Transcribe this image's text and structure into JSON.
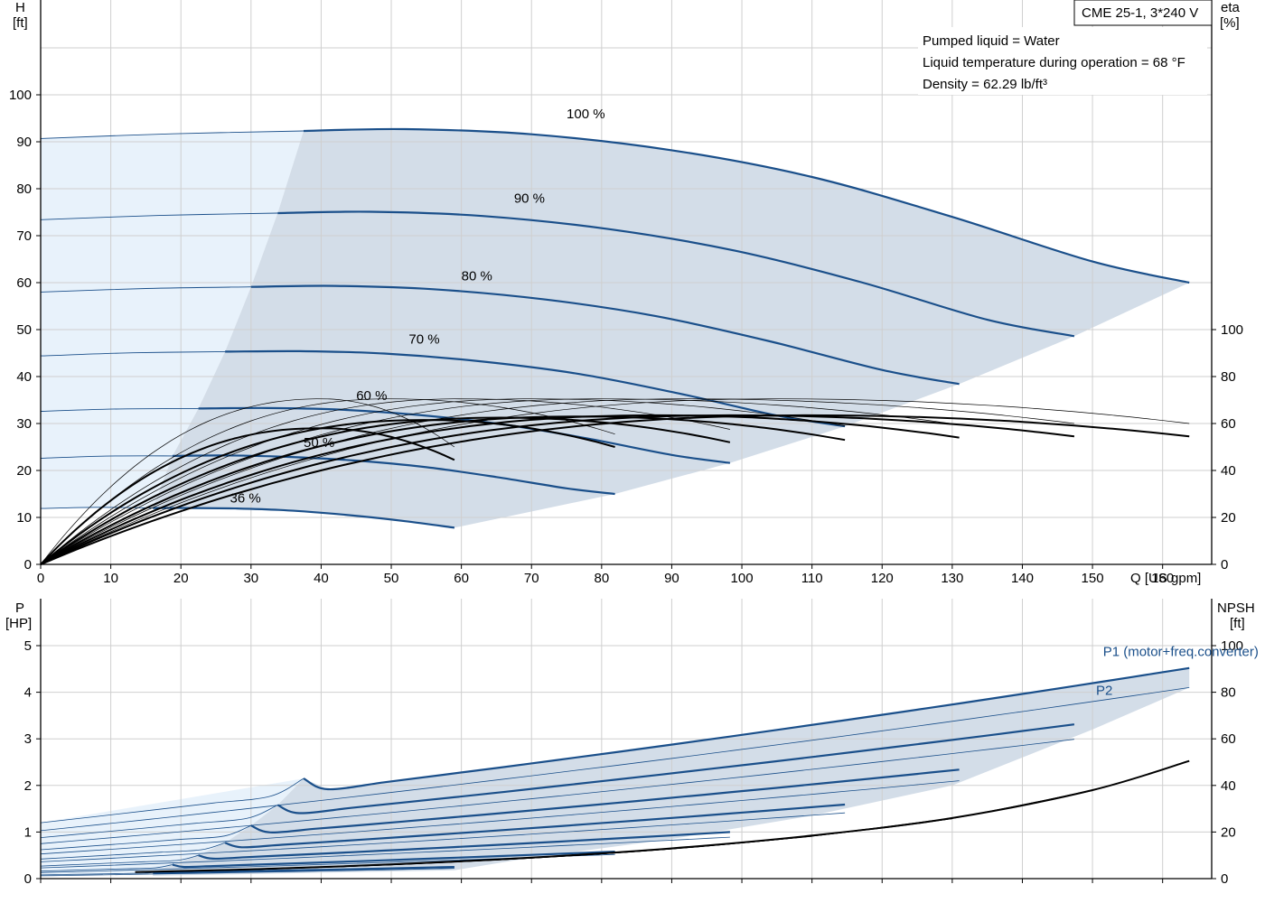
{
  "model_label": "CME 25-1, 3*240 V",
  "colors": {
    "speed_curve": "#1a4f8a",
    "fill_dark": "#d3dde8",
    "fill_light": "#e8f2fb",
    "eta_curve": "#000000",
    "grid": "#cfcfcf"
  },
  "notes": [
    "Pumped liquid = Water",
    "Liquid temperature during operation = 68 °F",
    "Density = 62.29 lb/ft³"
  ],
  "chart_data": [
    {
      "type": "line",
      "xlabel": "Q [US gpm]",
      "ylabel_left": "H",
      "ylabel_left_unit": "[ft]",
      "ylabel_right": "eta",
      "ylabel_right_unit": "[%]",
      "xlim": [
        0,
        167
      ],
      "ylim_left": [
        0,
        115
      ],
      "ylim_right_ticks": [
        0,
        20,
        40,
        60,
        80,
        100
      ],
      "x_ticks": [
        "0",
        "10",
        "20",
        "30",
        "40",
        "50",
        "60",
        "70",
        "80",
        "90",
        "100",
        "110",
        "120",
        "130",
        "140",
        "150",
        "160"
      ],
      "y_ticks_left": [
        "0",
        "10",
        "20",
        "30",
        "40",
        "50",
        "60",
        "70",
        "80",
        "90",
        "100"
      ],
      "y_ticks_right": [
        "0",
        "20",
        "40",
        "60",
        "80",
        "100"
      ],
      "head_curves": [
        {
          "label": "100 %",
          "shutoff": 90.7,
          "q_solid": 37.5,
          "q_end": 163.8,
          "h_end": 60,
          "points": [
            [
              37.5,
              92.3
            ],
            [
              52,
              92.7
            ],
            [
              70,
              91.6
            ],
            [
              90,
              88.2
            ],
            [
              110,
              82.5
            ],
            [
              130,
              74.0
            ],
            [
              150,
              64.5
            ],
            [
              163.8,
              60
            ]
          ],
          "label_at": [
            75,
            95
          ]
        },
        {
          "label": "90 %",
          "shutoff": 73.4,
          "q_solid": 33.8,
          "q_end": 147.4,
          "h_end": 48.6,
          "points": [
            [
              33.8,
              74.8
            ],
            [
              47,
              75.1
            ],
            [
              63,
              74.2
            ],
            [
              81,
              71.4
            ],
            [
              99,
              66.8
            ],
            [
              117,
              60.1
            ],
            [
              135,
              52.1
            ],
            [
              147.4,
              48.6
            ]
          ],
          "label_at": [
            67.5,
            77
          ]
        },
        {
          "label": "80 %",
          "shutoff": 58.0,
          "q_solid": 30.0,
          "q_end": 131,
          "h_end": 38.4,
          "points": [
            [
              30,
              59.1
            ],
            [
              42,
              59.3
            ],
            [
              56,
              58.6
            ],
            [
              72,
              56.4
            ],
            [
              88,
              52.8
            ],
            [
              104,
              47.5
            ],
            [
              120,
              41.4
            ],
            [
              131,
              38.4
            ]
          ],
          "label_at": [
            60,
            60.5
          ]
        },
        {
          "label": "70 %",
          "shutoff": 44.4,
          "q_solid": 26.3,
          "q_end": 114.7,
          "h_end": 29.4,
          "points": [
            [
              26.3,
              45.3
            ],
            [
              37,
              45.4
            ],
            [
              49,
              44.9
            ],
            [
              63,
              43.2
            ],
            [
              77,
              40.5
            ],
            [
              91,
              36.4
            ],
            [
              105,
              31.7
            ],
            [
              114.7,
              29.4
            ]
          ],
          "label_at": [
            52.5,
            47
          ]
        },
        {
          "label": "60 %",
          "shutoff": 32.6,
          "q_solid": 22.5,
          "q_end": 98.3,
          "h_end": 21.6,
          "points": [
            [
              22.5,
              33.2
            ],
            [
              31.5,
              33.3
            ],
            [
              42,
              33.0
            ],
            [
              54,
              31.8
            ],
            [
              66,
              29.8
            ],
            [
              78,
              26.8
            ],
            [
              90,
              23.3
            ],
            [
              98.3,
              21.6
            ]
          ],
          "label_at": [
            45,
            35
          ]
        },
        {
          "label": "50 %",
          "shutoff": 22.6,
          "q_solid": 18.8,
          "q_end": 81.9,
          "h_end": 15.0,
          "points": [
            [
              18.8,
              23.1
            ],
            [
              26.3,
              23.2
            ],
            [
              35,
              22.9
            ],
            [
              45,
              22.1
            ],
            [
              55,
              20.7
            ],
            [
              65,
              18.6
            ],
            [
              75,
              16.2
            ],
            [
              81.9,
              15.0
            ]
          ],
          "label_at": [
            37.5,
            25
          ]
        },
        {
          "label": "36 %",
          "shutoff": 11.9,
          "q_solid": 16.0,
          "q_end": 59,
          "h_end": 7.8,
          "points": [
            [
              16,
              12.0
            ],
            [
              22,
              12.0
            ],
            [
              28,
              11.9
            ],
            [
              34,
              11.6
            ],
            [
              40,
              11.0
            ],
            [
              46,
              10.2
            ],
            [
              52,
              9.2
            ],
            [
              59,
              7.8
            ]
          ],
          "label_at": [
            27,
            13.2
          ]
        }
      ],
      "eta_curves": [
        {
          "q_end": 163.8,
          "eta_end": 54.5,
          "peak_q": 110,
          "peak_eta": 63.5
        },
        {
          "q_end": 147.4,
          "eta_end": 54.5,
          "peak_q": 99,
          "peak_eta": 63.5
        },
        {
          "q_end": 131,
          "eta_end": 54.0,
          "peak_q": 88,
          "peak_eta": 63.5
        },
        {
          "q_end": 114.7,
          "eta_end": 53.0,
          "peak_q": 77,
          "peak_eta": 63.0
        },
        {
          "q_end": 98.3,
          "eta_end": 52.0,
          "peak_q": 66,
          "peak_eta": 62.5
        },
        {
          "q_end": 81.9,
          "eta_end": 50.0,
          "peak_q": 55,
          "peak_eta": 61.5
        },
        {
          "q_end": 59,
          "eta_end": 44.5,
          "peak_q": 40,
          "peak_eta": 58.0
        }
      ],
      "eta_thin_curves": [
        {
          "q_end": 163.8,
          "eta_end": 60.0,
          "peak_q": 105,
          "peak_eta": 70.5
        },
        {
          "q_end": 147.4,
          "eta_end": 60.0,
          "peak_q": 92,
          "peak_eta": 70.5
        },
        {
          "q_end": 131,
          "eta_end": 59.5,
          "peak_q": 80,
          "peak_eta": 70.5
        },
        {
          "q_end": 114.7,
          "eta_end": 59.0,
          "peak_q": 70,
          "peak_eta": 70.5
        },
        {
          "q_end": 98.3,
          "eta_end": 57.5,
          "peak_q": 60,
          "peak_eta": 70.5
        },
        {
          "q_end": 81.9,
          "eta_end": 55.5,
          "peak_q": 50,
          "peak_eta": 70.5
        },
        {
          "q_end": 59,
          "eta_end": 50.0,
          "peak_q": 40,
          "peak_eta": 70.5
        }
      ]
    },
    {
      "type": "line",
      "xlim": [
        0,
        167
      ],
      "ylabel_left": "P",
      "ylabel_left_unit": "[HP]",
      "ylabel_right": "NPSH",
      "ylabel_right_unit": "[ft]",
      "ylim_left": [
        0,
        5.5
      ],
      "y_ticks_left": [
        "0",
        "1",
        "2",
        "3",
        "4",
        "5"
      ],
      "y_ticks_right": [
        "0",
        "20",
        "40",
        "60",
        "80",
        "100"
      ],
      "legend": [
        {
          "name": "P1 (motor+freq.converter)",
          "at": [
            151.5,
            4.78
          ]
        },
        {
          "name": "P2",
          "at": [
            150.5,
            3.94
          ]
        }
      ],
      "p1_curves": [
        {
          "p0": 1.2,
          "q_solid": 37.5,
          "p_solid": 2.15,
          "q_end": 163.8,
          "p_end": 4.52
        },
        {
          "p0": 0.88,
          "q_solid": 33.8,
          "p_solid": 1.58,
          "q_end": 147.4,
          "p_end": 3.31
        },
        {
          "p0": 0.62,
          "q_solid": 30.0,
          "p_solid": 1.14,
          "q_end": 131,
          "p_end": 2.34
        },
        {
          "p0": 0.42,
          "q_solid": 26.3,
          "p_solid": 0.77,
          "q_end": 114.7,
          "p_end": 1.59
        },
        {
          "p0": 0.27,
          "q_solid": 22.5,
          "p_solid": 0.5,
          "q_end": 98.3,
          "p_end": 1.0
        },
        {
          "p0": 0.16,
          "q_solid": 18.8,
          "p_solid": 0.3,
          "q_end": 81.9,
          "p_end": 0.58
        },
        {
          "p0": 0.08,
          "q_solid": 16.0,
          "p_solid": 0.13,
          "q_end": 59,
          "p_end": 0.25
        }
      ],
      "p2_curves": [
        {
          "p0": 1.03,
          "q_end": 163.8,
          "p_end": 4.1
        },
        {
          "p0": 0.75,
          "q_end": 147.4,
          "p_end": 2.99
        },
        {
          "p0": 0.53,
          "q_end": 131,
          "p_end": 2.1
        },
        {
          "p0": 0.36,
          "q_end": 114.7,
          "p_end": 1.41
        },
        {
          "p0": 0.23,
          "q_end": 98.3,
          "p_end": 0.89
        },
        {
          "p0": 0.13,
          "q_end": 81.9,
          "p_end": 0.52
        },
        {
          "p0": 0.06,
          "q_end": 59,
          "p_end": 0.22
        }
      ],
      "npsh_curve": {
        "points": [
          [
            13.5,
            2.8
          ],
          [
            30,
            4.0
          ],
          [
            50,
            6.1
          ],
          [
            70,
            9.0
          ],
          [
            90,
            13.0
          ],
          [
            110,
            18.5
          ],
          [
            130,
            26.0
          ],
          [
            150,
            38.0
          ],
          [
            163.8,
            50.5
          ]
        ]
      }
    }
  ]
}
